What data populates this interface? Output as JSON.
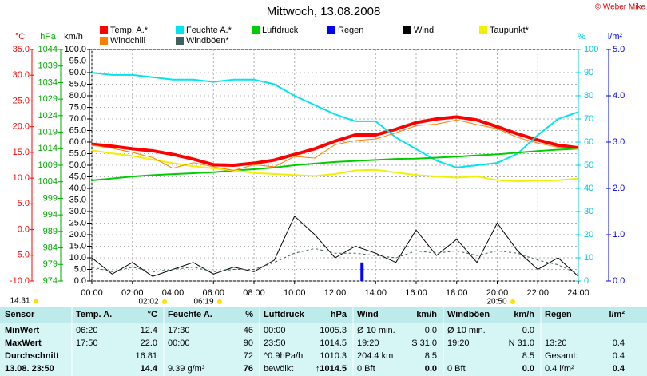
{
  "chart_data": {
    "type": "line",
    "title": "Mittwoch, 13.08.2008",
    "credit": "© Weber Mike",
    "ylabel": "°C",
    "y2label": "hPa",
    "y3label": "km/h",
    "y4label": "%",
    "y5label": "l/m²",
    "ylim": [
      -10,
      35
    ],
    "yticks": [
      {
        "value": -10,
        "label": "-10.0"
      },
      {
        "value": -5,
        "label": "-5.0"
      },
      {
        "value": 0,
        "label": "0.0"
      },
      {
        "value": 5,
        "label": "5.0"
      },
      {
        "value": 10,
        "label": "10.0"
      },
      {
        "value": 15,
        "label": "15.0"
      },
      {
        "value": 20,
        "label": "20.0"
      },
      {
        "value": 25,
        "label": "25.0"
      },
      {
        "value": 30,
        "label": "30.0"
      },
      {
        "value": 35,
        "label": "35.0"
      }
    ],
    "y2lim": [
      974,
      1044
    ],
    "y2ticks": [
      974,
      979,
      984,
      989,
      994,
      999,
      1004,
      1009,
      1014,
      1019,
      1024,
      1029,
      1034,
      1039,
      1044
    ],
    "y3lim": [
      0,
      100
    ],
    "y3ticks": [
      {
        "value": 0,
        "label": "0.0"
      },
      {
        "value": 5,
        "label": "5.0"
      },
      {
        "value": 10,
        "label": "10.0"
      },
      {
        "value": 15,
        "label": "15.0"
      },
      {
        "value": 20,
        "label": "20.0"
      },
      {
        "value": 25,
        "label": "25.0"
      },
      {
        "value": 30,
        "label": "30.0"
      },
      {
        "value": 35,
        "label": "35.0"
      },
      {
        "value": 40,
        "label": "40.0"
      },
      {
        "value": 45,
        "label": "45.0"
      },
      {
        "value": 50,
        "label": "50.0"
      },
      {
        "value": 55,
        "label": "55.0"
      },
      {
        "value": 60,
        "label": "60.0"
      },
      {
        "value": 65,
        "label": "65.0"
      },
      {
        "value": 70,
        "label": "70.0"
      },
      {
        "value": 75,
        "label": "75.0"
      },
      {
        "value": 80,
        "label": "80.0"
      },
      {
        "value": 85,
        "label": "85.0"
      },
      {
        "value": 90,
        "label": "90.0"
      },
      {
        "value": 95,
        "label": "95.0"
      },
      {
        "value": 100,
        "label": "100.0"
      }
    ],
    "y4lim": [
      0,
      100
    ],
    "y4ticks": [
      0,
      10,
      20,
      30,
      40,
      50,
      60,
      70,
      80,
      90,
      100
    ],
    "y5lim": [
      0,
      5
    ],
    "y5ticks": [
      {
        "value": 0,
        "label": "0.0"
      },
      {
        "value": 1,
        "label": "1.0"
      },
      {
        "value": 2,
        "label": "2.0"
      },
      {
        "value": 3,
        "label": "3.0"
      },
      {
        "value": 4,
        "label": "4.0"
      },
      {
        "value": 5,
        "label": "5.0"
      }
    ],
    "xlim": [
      0,
      24
    ],
    "xticks": [
      {
        "value": 0,
        "label": "00:00"
      },
      {
        "value": 2,
        "label": "02:00"
      },
      {
        "value": 4,
        "label": "04:00"
      },
      {
        "value": 6,
        "label": "06:00"
      },
      {
        "value": 8,
        "label": "08:00"
      },
      {
        "value": 10,
        "label": "10:00"
      },
      {
        "value": 12,
        "label": "12:00"
      },
      {
        "value": 14,
        "label": "14:00"
      },
      {
        "value": 16,
        "label": "16:00"
      },
      {
        "value": 18,
        "label": "18:00"
      },
      {
        "value": 20,
        "label": "20:00"
      },
      {
        "value": 22,
        "label": "22:00"
      },
      {
        "value": 24,
        "label": "24:00"
      }
    ],
    "grid": true,
    "x": [
      0,
      1,
      2,
      3,
      4,
      5,
      6,
      7,
      8,
      9,
      10,
      11,
      12,
      13,
      14,
      15,
      16,
      17,
      18,
      19,
      20,
      21,
      22,
      23,
      24
    ],
    "series": [
      {
        "name": "Temp. A.*",
        "color": "#ff0000",
        "axis": "y",
        "values": [
          16.6,
          16.2,
          15.7,
          15.3,
          14.6,
          13.7,
          12.6,
          12.5,
          12.9,
          13.5,
          14.6,
          15.7,
          17.2,
          18.4,
          18.4,
          19.5,
          20.8,
          21.5,
          21.9,
          21.3,
          20.0,
          18.6,
          17.4,
          16.4,
          15.9
        ]
      },
      {
        "name": "Feuchte A.*",
        "color": "#00e5f0",
        "axis": "y4",
        "values": [
          90,
          89,
          89,
          88,
          87,
          87,
          86,
          87,
          87,
          85,
          80,
          76,
          72,
          69,
          69,
          62,
          57,
          52,
          49,
          50,
          51,
          55,
          63,
          70,
          73
        ]
      },
      {
        "name": "Luftdruck",
        "color": "#00cc00",
        "axis": "y2",
        "values": [
          1004.4,
          1005,
          1005.6,
          1006,
          1006.3,
          1006.6,
          1006.9,
          1007.4,
          1007.8,
          1008.3,
          1009,
          1009.5,
          1010,
          1010.3,
          1010.6,
          1010.9,
          1011,
          1011.3,
          1011.6,
          1012,
          1012.3,
          1012.8,
          1013.3,
          1013.7,
          1014
        ]
      },
      {
        "name": "Regen",
        "color": "#0000ff",
        "axis": "y5",
        "kind": "bar",
        "x": [
          13.33
        ],
        "values": [
          0.4
        ]
      },
      {
        "name": "Wind",
        "color": "#000000",
        "axis": "y3",
        "values": [
          10,
          3,
          8,
          2,
          5,
          8,
          3,
          6,
          4,
          9,
          28,
          20,
          10,
          15,
          12,
          8,
          22,
          11,
          18,
          8,
          25,
          13,
          5,
          10,
          2
        ]
      },
      {
        "name": "Taupunkt*",
        "color": "#f0f000",
        "axis": "y",
        "values": [
          15.4,
          14.8,
          14.3,
          13.6,
          12.9,
          12.3,
          11.9,
          11.5,
          11.0,
          10.8,
          10.6,
          10.4,
          10.8,
          11.5,
          11.6,
          11.1,
          10.6,
          10.3,
          10.1,
          10.3,
          9.6,
          9.4,
          9.5,
          9.6,
          9.9
        ]
      },
      {
        "name": "Windchill",
        "color": "#ff8000",
        "axis": "y",
        "values": [
          16.4,
          15.8,
          15.0,
          14.0,
          11.9,
          13.0,
          12.2,
          11.5,
          12.6,
          12.2,
          14.2,
          13.9,
          16.5,
          17.3,
          17.6,
          18.8,
          20.2,
          20.5,
          21.3,
          20.4,
          19.6,
          17.9,
          16.8,
          16.0,
          15.7
        ]
      },
      {
        "name": "Windböen*",
        "color": "#406060",
        "axis": "y3",
        "dashed": true,
        "values": [
          6,
          4,
          6,
          4,
          5,
          6,
          4,
          5,
          5,
          8,
          12,
          14,
          12,
          12,
          11,
          10,
          13,
          12,
          13,
          11,
          13,
          12,
          9,
          7,
          3
        ]
      }
    ],
    "annotations": [
      "14:31",
      "02:02",
      "06:19",
      "20:50"
    ]
  },
  "table": {
    "header": [
      "Sensor",
      "Temp. A.",
      "°C",
      "Feuchte A.",
      "%",
      "Luftdruck",
      "hPa",
      "Wind",
      "km/h",
      "Windböen",
      "km/h",
      "Regen",
      "l/m²"
    ],
    "rows": [
      [
        "MinWert",
        "06:20",
        "12.4",
        "17:30",
        "46",
        "00:00",
        "1005.3",
        "Ø 10 min.",
        "0.0",
        "Ø 10 min.",
        "0.0",
        null,
        null
      ],
      [
        "MaxWert",
        "17:50",
        "22.0",
        "00:00",
        "90",
        "23:50",
        "1014.5",
        "19:20",
        "S 31.0",
        "19:20",
        "N 31.0",
        "13:20",
        "0.4"
      ],
      [
        "Durchschnitt",
        null,
        "16.81",
        null,
        "72",
        "^0.9hPa/h",
        "1010.3",
        "204.4 km",
        "8.5",
        null,
        "8.5",
        "Gesamt:",
        "0.4"
      ],
      [
        "13.08. 23:50",
        null,
        "14.4",
        "9.39 g/m³",
        "76",
        "bewölkt",
        "↑1014.5",
        "0 Bft",
        "0.0",
        "0 Bft",
        "0.0",
        "0.4 l/m²",
        "0.4"
      ]
    ]
  }
}
